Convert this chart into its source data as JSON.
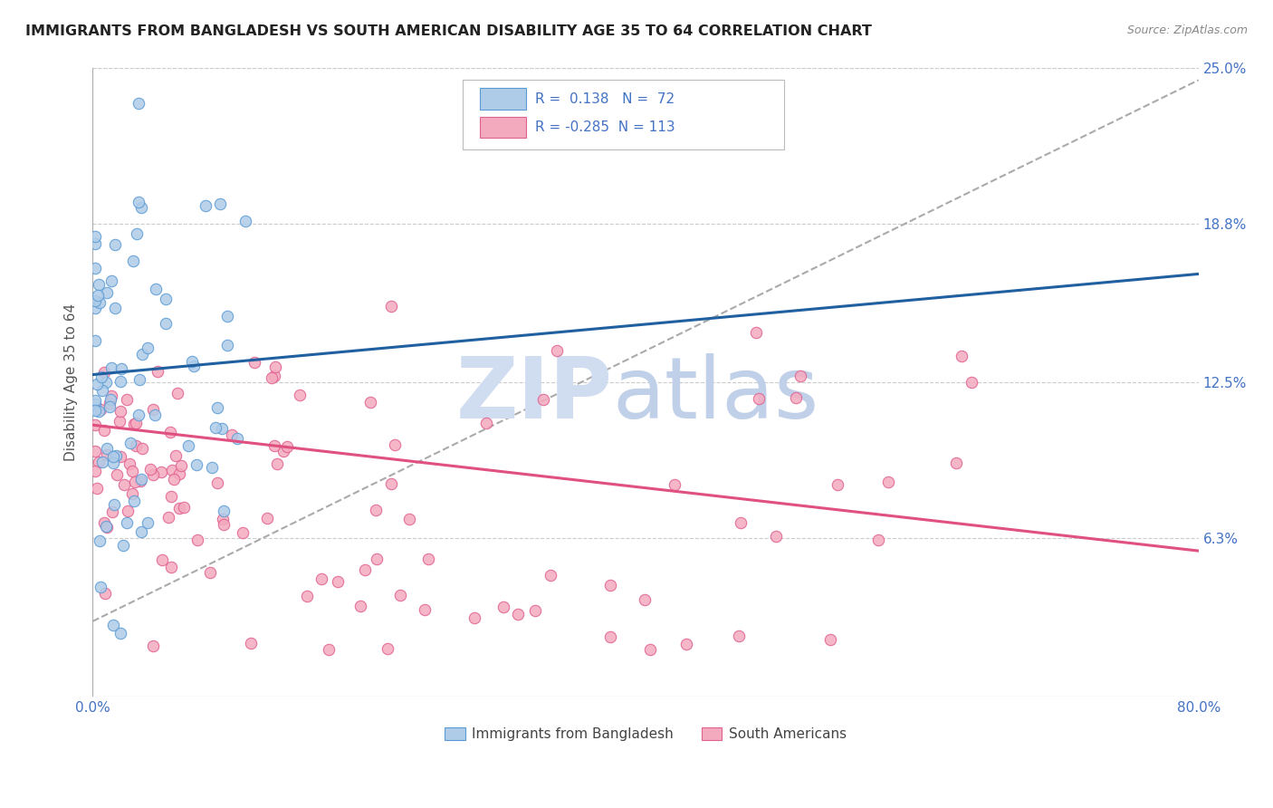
{
  "title": "IMMIGRANTS FROM BANGLADESH VS SOUTH AMERICAN DISABILITY AGE 35 TO 64 CORRELATION CHART",
  "source_text": "Source: ZipAtlas.com",
  "ylabel": "Disability Age 35 to 64",
  "xlim": [
    0.0,
    0.8
  ],
  "ylim": [
    0.0,
    0.25
  ],
  "xtick_positions": [
    0.0,
    0.8
  ],
  "xtick_labels": [
    "0.0%",
    "80.0%"
  ],
  "ytick_values": [
    0.063,
    0.125,
    0.188,
    0.25
  ],
  "ytick_labels": [
    "6.3%",
    "12.5%",
    "18.8%",
    "25.0%"
  ],
  "legend_r_blue": "0.138",
  "legend_n_blue": "72",
  "legend_r_pink": "-0.285",
  "legend_n_pink": "113",
  "blue_fill": "#AECCE8",
  "blue_edge": "#5B9BD5",
  "pink_fill": "#F4AABE",
  "pink_edge": "#E06090",
  "blue_line_color": "#2060A0",
  "pink_line_color": "#E05080",
  "dash_line_color": "#AAAAAA",
  "background_color": "#FFFFFF",
  "grid_color": "#CCCCCC",
  "tick_color": "#4472C4",
  "title_color": "#222222",
  "source_color": "#888888",
  "ylabel_color": "#555555",
  "blue_trend_x": [
    0.0,
    0.8
  ],
  "blue_trend_y": [
    0.128,
    0.168
  ],
  "pink_trend_x": [
    0.0,
    0.8
  ],
  "pink_trend_y": [
    0.108,
    0.058
  ],
  "dash_trend_x": [
    0.0,
    0.8
  ],
  "dash_trend_y": [
    0.03,
    0.245
  ],
  "watermark_zip": "ZIP",
  "watermark_atlas": "atlas",
  "legend1_label": "Immigrants from Bangladesh",
  "legend2_label": "South Americans"
}
